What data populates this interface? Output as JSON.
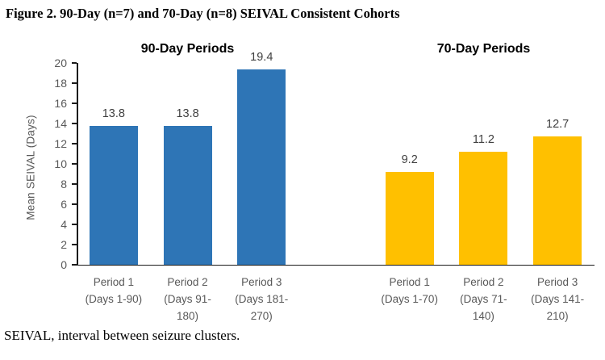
{
  "figure": {
    "title": "Figure 2. 90-Day (n=7) and 70-Day (n=8) SEIVAL Consistent Cohorts",
    "footnote": "SEIVAL, interval between seizure clusters."
  },
  "chart_data": {
    "type": "bar",
    "title": "Figure 2. 90-Day (n=7) and 70-Day (n=8) SEIVAL Consistent Cohorts",
    "xlabel": "",
    "ylabel": "Mean SEIVAL (Days)",
    "ylim": [
      0,
      20
    ],
    "ytick_step": 2,
    "grid": false,
    "legend_position": "none",
    "groups": [
      {
        "title": "90-Day Periods",
        "color": "#2E75B6",
        "categories": [
          [
            "Period 1",
            "(Days 1-90)"
          ],
          [
            "Period 2",
            "(Days 91-",
            "180)"
          ],
          [
            "Period 3",
            "(Days 181-",
            "270)"
          ]
        ],
        "values": [
          13.8,
          13.8,
          19.4
        ],
        "value_labels": [
          "13.8",
          "13.8",
          "19.4"
        ]
      },
      {
        "title": "70-Day Periods",
        "color": "#FFC000",
        "categories": [
          [
            "Period 1",
            "(Days 1-70)"
          ],
          [
            "Period 2",
            "(Days 71-",
            "140)"
          ],
          [
            "Period 3",
            "(Days 141-",
            "210)"
          ]
        ],
        "values": [
          9.2,
          11.2,
          12.7
        ],
        "value_labels": [
          "9.2",
          "11.2",
          "12.7"
        ]
      }
    ],
    "footnote": "SEIVAL, interval between seizure clusters."
  }
}
